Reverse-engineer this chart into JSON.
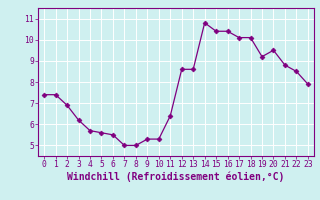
{
  "x": [
    0,
    1,
    2,
    3,
    4,
    5,
    6,
    7,
    8,
    9,
    10,
    11,
    12,
    13,
    14,
    15,
    16,
    17,
    18,
    19,
    20,
    21,
    22,
    23
  ],
  "y": [
    7.4,
    7.4,
    6.9,
    6.2,
    5.7,
    5.6,
    5.5,
    5.0,
    5.0,
    5.3,
    5.3,
    6.4,
    8.6,
    8.6,
    10.8,
    10.4,
    10.4,
    10.1,
    10.1,
    9.2,
    9.5,
    8.8,
    8.5,
    7.9
  ],
  "line_color": "#800080",
  "marker": "D",
  "marker_size": 2.5,
  "line_width": 0.9,
  "xlabel": "Windchill (Refroidissement éolien,°C)",
  "xlabel_fontsize": 7,
  "ylim": [
    4.5,
    11.5
  ],
  "xlim": [
    -0.5,
    23.5
  ],
  "yticks": [
    5,
    6,
    7,
    8,
    9,
    10,
    11
  ],
  "xticks": [
    0,
    1,
    2,
    3,
    4,
    5,
    6,
    7,
    8,
    9,
    10,
    11,
    12,
    13,
    14,
    15,
    16,
    17,
    18,
    19,
    20,
    21,
    22,
    23
  ],
  "bg_color": "#cff0f0",
  "grid_color": "#ffffff",
  "tick_color": "#800080",
  "tick_fontsize": 5.8,
  "spine_color": "#800080"
}
